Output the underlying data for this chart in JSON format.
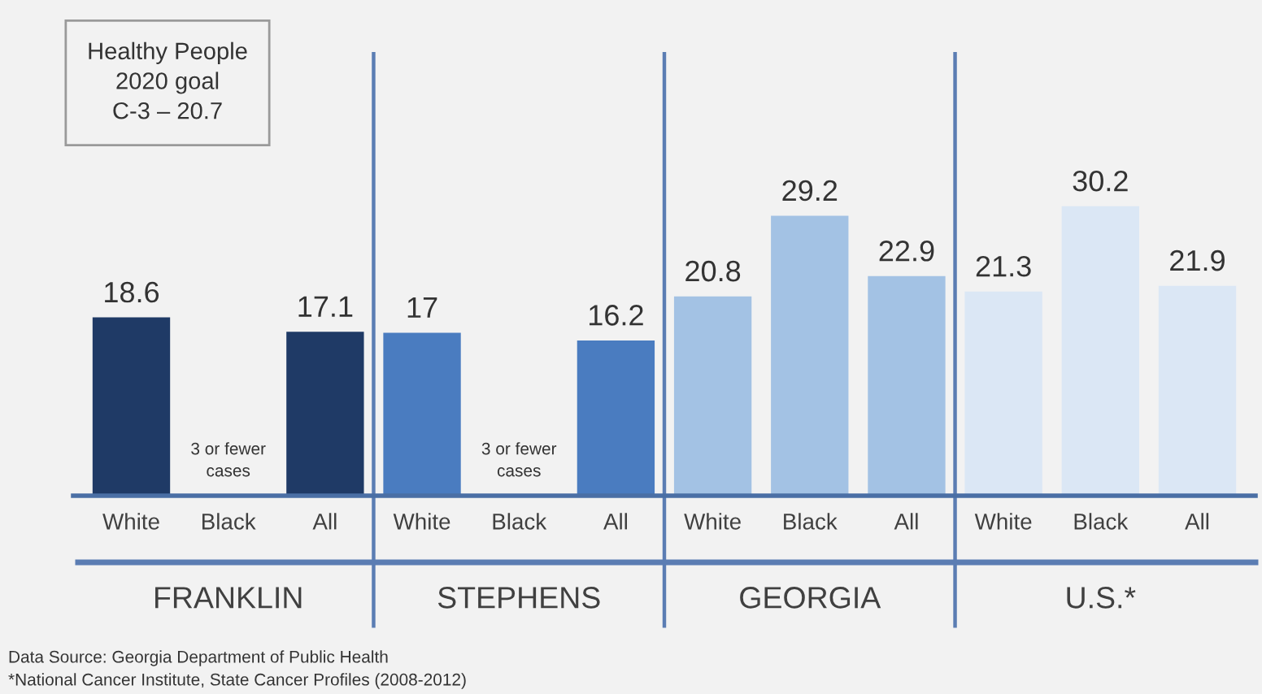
{
  "chart_data": {
    "type": "bar",
    "categories": [
      "FRANKLIN",
      "STEPHENS",
      "GEORGIA",
      "U.S.*"
    ],
    "series": [
      {
        "name": "White",
        "colors": [
          "#1f3a66",
          "#4a7cc0",
          "#a3c2e4",
          "#dbe7f5"
        ],
        "values": [
          18.6,
          17,
          20.8,
          21.3
        ],
        "value_labels": [
          "18.6",
          "17",
          "20.8",
          "21.3"
        ]
      },
      {
        "name": "Black",
        "colors": [
          "#1f3a66",
          "#4a7cc0",
          "#a3c2e4",
          "#dbe7f5"
        ],
        "values": [
          null,
          null,
          29.2,
          30.2
        ],
        "value_labels": [
          "3 or fewer\ncases",
          "3 or fewer\ncases",
          "29.2",
          "30.2"
        ]
      },
      {
        "name": "All",
        "colors": [
          "#1f3a66",
          "#4a7cc0",
          "#a3c2e4",
          "#dbe7f5"
        ],
        "values": [
          17.1,
          16.2,
          22.9,
          21.9
        ],
        "value_labels": [
          "17.1",
          "16.2",
          "22.9",
          "21.9"
        ]
      }
    ],
    "tick_labels": "x",
    "annotations": [
      "Healthy People\n2020 goal\nC-3 – 20.7",
      "Data Source: Georgia Department of Public Health",
      "*National Cancer Institute, State Cancer Profiles (2008-2012)"
    ]
  }
}
